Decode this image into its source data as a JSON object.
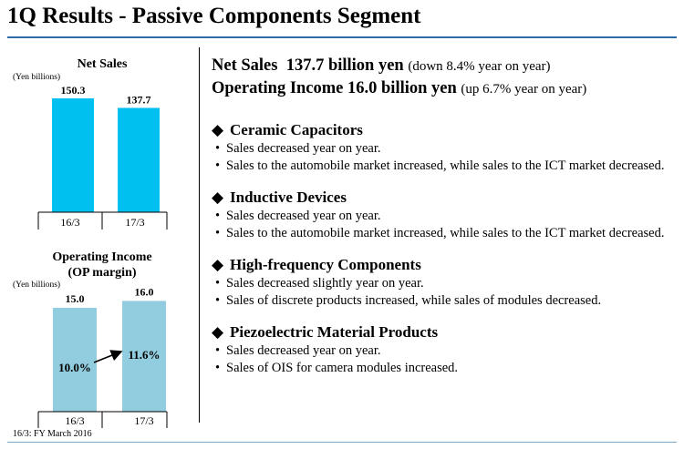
{
  "page": {
    "title": "1Q Results - Passive Components Segment",
    "footnote": "16/3: FY March 2016"
  },
  "summary": {
    "net_sales_label": "Net Sales",
    "net_sales_value": "137.7 billion yen",
    "net_sales_note": "(down 8.4% year on year)",
    "op_income_label": "Operating Income",
    "op_income_value": "16.0 billion yen",
    "op_income_note": "(up 6.7% year on year)"
  },
  "sections": [
    {
      "title": "Ceramic Capacitors",
      "bullets": [
        "Sales decreased year on year.",
        "Sales to the automobile market increased, while sales to the ICT market decreased."
      ]
    },
    {
      "title": "Inductive Devices",
      "bullets": [
        "Sales decreased year on year.",
        "Sales to the automobile market increased, while sales to the ICT market decreased."
      ]
    },
    {
      "title": "High-frequency Components",
      "bullets": [
        "Sales decreased slightly year on year.",
        "Sales of discrete products increased, while sales of modules decreased."
      ]
    },
    {
      "title": "Piezoelectric Material Products",
      "bullets": [
        "Sales decreased year on year.",
        "Sales of OIS for camera modules increased."
      ]
    }
  ],
  "chart_data": [
    {
      "type": "bar",
      "title": "Net Sales",
      "ylabel": "(Yen billions)",
      "categories": [
        "16/3",
        "17/3"
      ],
      "values": [
        150.3,
        137.7
      ],
      "value_labels": [
        "150.3",
        "137.7"
      ],
      "color": "#00c0f0"
    },
    {
      "type": "bar",
      "title_line1": "Operating Income",
      "title_line2": "(OP margin)",
      "ylabel": "(Yen billions)",
      "categories": [
        "16/3",
        "17/3"
      ],
      "values": [
        15.0,
        16.0
      ],
      "value_labels": [
        "15.0",
        "16.0"
      ],
      "margins": [
        "10.0%",
        "11.6%"
      ],
      "color": "#92cddf"
    }
  ],
  "colors": {
    "title_rule": "#2c6aa8",
    "net_sales_bar": "#00c0f0",
    "op_income_bar": "#92cddf"
  }
}
